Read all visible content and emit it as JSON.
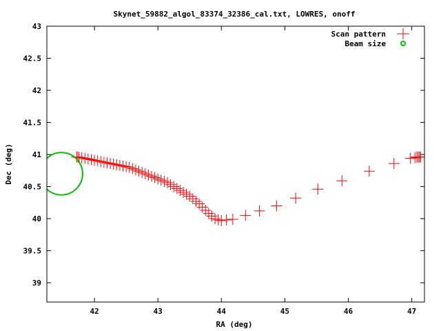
{
  "chart_data": {
    "type": "scatter",
    "title": "Skynet_59882_algol_83374_32386_cal.txt, LOWRES, onoff",
    "xlabel": "RA (deg)",
    "ylabel": "Dec (deg)",
    "xlim": [
      41.25,
      47.2
    ],
    "ylim": [
      38.7,
      43.0
    ],
    "xticks": [
      42,
      43,
      44,
      45,
      46,
      47
    ],
    "xtick_labels": [
      "42",
      "43",
      "44",
      "45",
      "46",
      "47"
    ],
    "yticks": [
      39,
      39.5,
      40,
      40.5,
      41,
      41.5,
      42,
      42.5,
      43
    ],
    "ytick_labels": [
      "39",
      "39.5",
      "40",
      "40.5",
      "41",
      "41.5",
      "42",
      "42.5",
      "43"
    ],
    "grid": false,
    "legend_position": "top-right",
    "series": [
      {
        "name": "Scan pattern",
        "marker": "plus",
        "color": "#ff0000",
        "x": [
          41.72,
          41.74,
          41.76,
          41.8,
          41.85,
          41.9,
          41.95,
          42.0,
          42.05,
          42.1,
          42.15,
          42.2,
          42.25,
          42.3,
          42.35,
          42.4,
          42.45,
          42.5,
          42.55,
          42.6,
          42.65,
          42.7,
          42.75,
          42.8,
          42.85,
          42.9,
          42.95,
          43.0,
          43.05,
          43.1,
          43.15,
          43.2,
          43.25,
          43.3,
          43.35,
          43.4,
          43.45,
          43.5,
          43.55,
          43.6,
          43.65,
          43.7,
          43.75,
          43.8,
          43.85,
          43.9,
          43.95,
          44.0,
          44.08,
          44.18,
          44.38,
          44.6,
          44.87,
          45.17,
          45.52,
          45.9,
          46.33,
          46.72,
          46.98,
          47.05,
          47.08,
          47.1,
          47.12,
          47.14
        ],
        "y": [
          40.96,
          40.96,
          40.95,
          40.95,
          40.94,
          40.93,
          40.92,
          40.91,
          40.9,
          40.89,
          40.88,
          40.87,
          40.86,
          40.85,
          40.84,
          40.83,
          40.82,
          40.81,
          40.8,
          40.78,
          40.76,
          40.74,
          40.72,
          40.7,
          40.68,
          40.66,
          40.64,
          40.62,
          40.6,
          40.58,
          40.56,
          40.53,
          40.5,
          40.47,
          40.44,
          40.41,
          40.38,
          40.35,
          40.31,
          40.27,
          40.23,
          40.18,
          40.13,
          40.08,
          40.04,
          40.0,
          39.98,
          39.97,
          39.98,
          39.99,
          40.05,
          40.12,
          40.2,
          40.32,
          40.46,
          40.59,
          40.74,
          40.86,
          40.94,
          40.95,
          40.96,
          40.96,
          40.96,
          40.96
        ]
      },
      {
        "name": "Beam size",
        "marker": "circle",
        "color": "#00c000",
        "center": [
          41.48,
          40.7
        ],
        "radius_dec": 0.33
      }
    ]
  }
}
